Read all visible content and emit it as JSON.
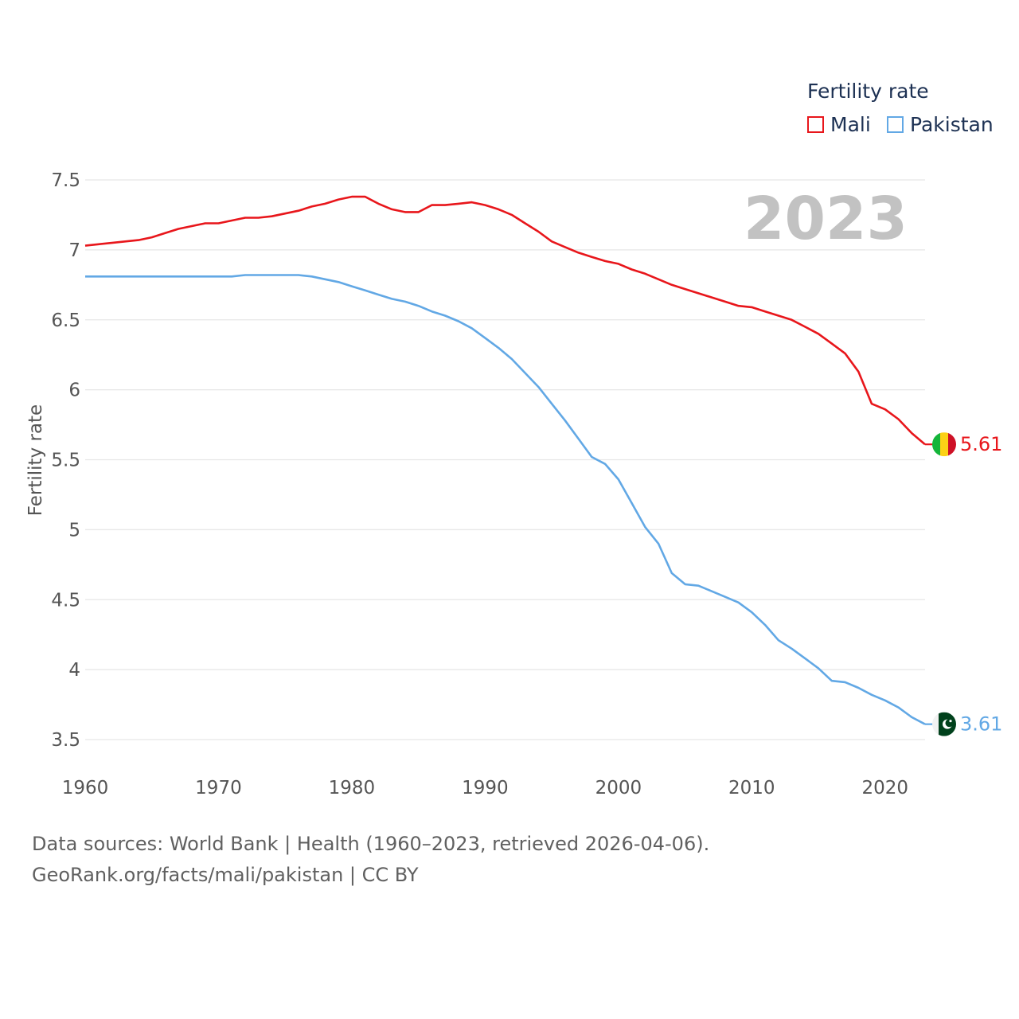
{
  "legend": {
    "title": "Fertility rate",
    "items": [
      {
        "label": "Mali",
        "color": "#e8161b"
      },
      {
        "label": "Pakistan",
        "color": "#62a8e5"
      }
    ]
  },
  "year_label": "2023",
  "footer": {
    "line1": "Data sources: World Bank | Health (1960–2023, retrieved 2026-04-06).",
    "line2": "GeoRank.org/facts/mali/pakistan | CC BY"
  },
  "colors": {
    "mali": "#e8161b",
    "pakistan": "#62a8e5",
    "grid": "#e6e6e6",
    "axis_text": "#555555",
    "year": "#c2c2c2"
  },
  "chart_data": {
    "type": "line",
    "title": "",
    "xlabel": "",
    "ylabel": "Fertility rate",
    "xlim": [
      1960,
      2023
    ],
    "ylim": [
      3.5,
      7.5
    ],
    "x_ticks": [
      1960,
      1970,
      1980,
      1990,
      2000,
      2010,
      2020
    ],
    "y_ticks": [
      {
        "value": 3.5,
        "label": "3.5"
      },
      {
        "value": 4,
        "label": "4"
      },
      {
        "value": 4.5,
        "label": "4.5"
      },
      {
        "value": 5,
        "label": "5"
      },
      {
        "value": 5.5,
        "label": "5.5"
      },
      {
        "value": 6,
        "label": "6"
      },
      {
        "value": 6.5,
        "label": "6.5"
      },
      {
        "value": 7,
        "label": "7"
      },
      {
        "value": 7.5,
        "label": "7.5"
      }
    ],
    "grid": true,
    "x": [
      1960,
      1961,
      1962,
      1963,
      1964,
      1965,
      1966,
      1967,
      1968,
      1969,
      1970,
      1971,
      1972,
      1973,
      1974,
      1975,
      1976,
      1977,
      1978,
      1979,
      1980,
      1981,
      1982,
      1983,
      1984,
      1985,
      1986,
      1987,
      1988,
      1989,
      1990,
      1991,
      1992,
      1993,
      1994,
      1995,
      1996,
      1997,
      1998,
      1999,
      2000,
      2001,
      2002,
      2003,
      2004,
      2005,
      2006,
      2007,
      2008,
      2009,
      2010,
      2011,
      2012,
      2013,
      2014,
      2015,
      2016,
      2017,
      2018,
      2019,
      2020,
      2021,
      2022,
      2023
    ],
    "series": [
      {
        "name": "Mali",
        "end_label": "5.61",
        "flag": "mali-flag",
        "values": [
          7.03,
          7.04,
          7.05,
          7.06,
          7.07,
          7.09,
          7.12,
          7.15,
          7.17,
          7.19,
          7.19,
          7.21,
          7.23,
          7.23,
          7.24,
          7.26,
          7.28,
          7.31,
          7.33,
          7.36,
          7.38,
          7.38,
          7.33,
          7.29,
          7.27,
          7.27,
          7.32,
          7.32,
          7.33,
          7.34,
          7.32,
          7.29,
          7.25,
          7.19,
          7.13,
          7.06,
          7.02,
          6.98,
          6.95,
          6.92,
          6.9,
          6.86,
          6.83,
          6.79,
          6.75,
          6.72,
          6.69,
          6.66,
          6.63,
          6.6,
          6.59,
          6.56,
          6.53,
          6.5,
          6.45,
          6.4,
          6.33,
          6.26,
          6.13,
          5.9,
          5.86,
          5.79,
          5.69,
          5.61
        ]
      },
      {
        "name": "Pakistan",
        "end_label": "3.61",
        "flag": "pakistan-flag",
        "values": [
          6.81,
          6.81,
          6.81,
          6.81,
          6.81,
          6.81,
          6.81,
          6.81,
          6.81,
          6.81,
          6.81,
          6.81,
          6.82,
          6.82,
          6.82,
          6.82,
          6.82,
          6.81,
          6.79,
          6.77,
          6.74,
          6.71,
          6.68,
          6.65,
          6.63,
          6.6,
          6.56,
          6.53,
          6.49,
          6.44,
          6.37,
          6.3,
          6.22,
          6.12,
          6.02,
          5.9,
          5.78,
          5.65,
          5.52,
          5.47,
          5.36,
          5.19,
          5.02,
          4.9,
          4.69,
          4.61,
          4.6,
          4.56,
          4.52,
          4.48,
          4.41,
          4.32,
          4.21,
          4.15,
          4.08,
          4.01,
          3.92,
          3.91,
          3.87,
          3.82,
          3.78,
          3.73,
          3.66,
          3.61
        ]
      }
    ]
  }
}
